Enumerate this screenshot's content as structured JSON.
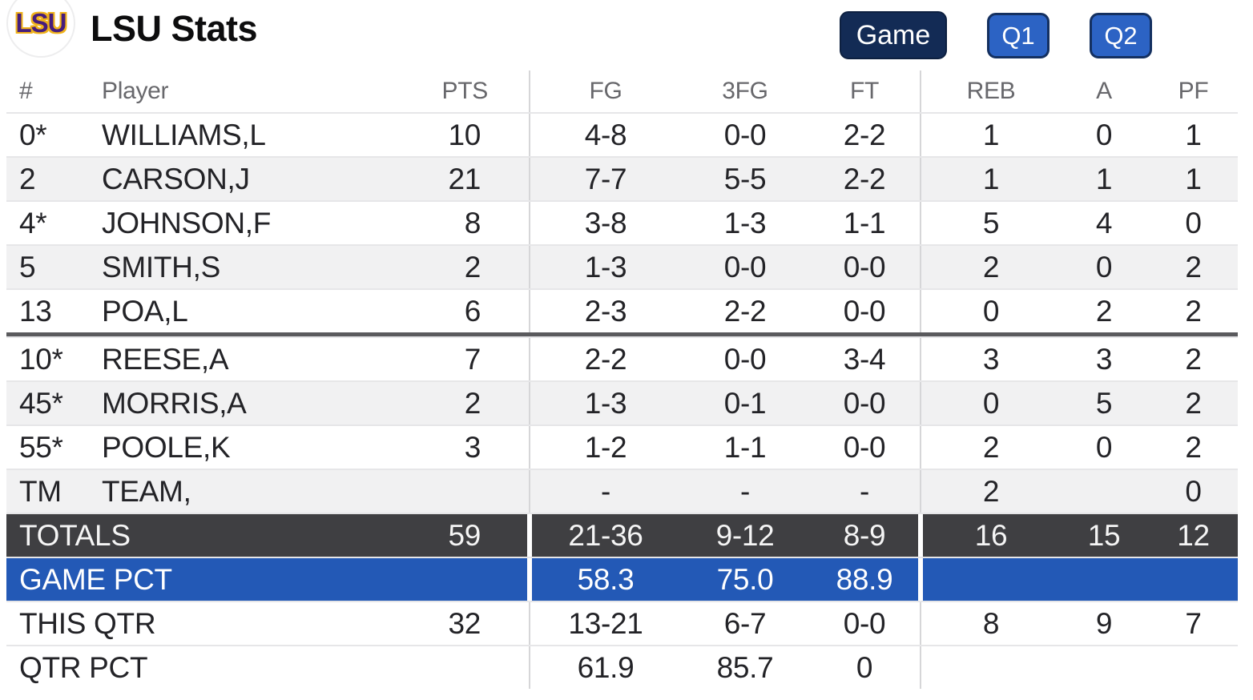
{
  "header": {
    "logo_text": "LSU",
    "title": "LSU Stats",
    "buttons": [
      {
        "label": "Game",
        "active": true
      },
      {
        "label": "Q1",
        "active": false
      },
      {
        "label": "Q2",
        "active": false
      }
    ]
  },
  "table": {
    "columns": [
      "#",
      "Player",
      "PTS",
      "FG",
      "3FG",
      "FT",
      "REB",
      "A",
      "PF"
    ],
    "divider_after_index": 4,
    "players": [
      {
        "num": "0*",
        "name": "WILLIAMS,L",
        "pts": "10",
        "fg": "4-8",
        "tfg": "0-0",
        "ft": "2-2",
        "reb": "1",
        "a": "0",
        "pf": "1"
      },
      {
        "num": "2",
        "name": "CARSON,J",
        "pts": "21",
        "fg": "7-7",
        "tfg": "5-5",
        "ft": "2-2",
        "reb": "1",
        "a": "1",
        "pf": "1"
      },
      {
        "num": "4*",
        "name": "JOHNSON,F",
        "pts": "8",
        "fg": "3-8",
        "tfg": "1-3",
        "ft": "1-1",
        "reb": "5",
        "a": "4",
        "pf": "0"
      },
      {
        "num": "5",
        "name": "SMITH,S",
        "pts": "2",
        "fg": "1-3",
        "tfg": "0-0",
        "ft": "0-0",
        "reb": "2",
        "a": "0",
        "pf": "2"
      },
      {
        "num": "13",
        "name": "POA,L",
        "pts": "6",
        "fg": "2-3",
        "tfg": "2-2",
        "ft": "0-0",
        "reb": "0",
        "a": "2",
        "pf": "2"
      },
      {
        "num": "10*",
        "name": "REESE,A",
        "pts": "7",
        "fg": "2-2",
        "tfg": "0-0",
        "ft": "3-4",
        "reb": "3",
        "a": "3",
        "pf": "2"
      },
      {
        "num": "45*",
        "name": "MORRIS,A",
        "pts": "2",
        "fg": "1-3",
        "tfg": "0-1",
        "ft": "0-0",
        "reb": "0",
        "a": "5",
        "pf": "2"
      },
      {
        "num": "55*",
        "name": "POOLE,K",
        "pts": "3",
        "fg": "1-2",
        "tfg": "1-1",
        "ft": "0-0",
        "reb": "2",
        "a": "0",
        "pf": "2"
      },
      {
        "num": "TM",
        "name": "TEAM,",
        "pts": "",
        "fg": "-",
        "tfg": "-",
        "ft": "-",
        "reb": "2",
        "a": "",
        "pf": "0"
      }
    ],
    "summary": [
      {
        "label": "TOTALS",
        "pts": "59",
        "fg": "21-36",
        "tfg": "9-12",
        "ft": "8-9",
        "reb": "16",
        "a": "15",
        "pf": "12",
        "style": "totals"
      },
      {
        "label": "GAME PCT",
        "pts": "",
        "fg": "58.3",
        "tfg": "75.0",
        "ft": "88.9",
        "reb": "",
        "a": "",
        "pf": "",
        "style": "gamepct"
      },
      {
        "label": "THIS QTR",
        "pts": "32",
        "fg": "13-21",
        "tfg": "6-7",
        "ft": "0-0",
        "reb": "8",
        "a": "9",
        "pf": "7",
        "style": "plain"
      },
      {
        "label": "QTR PCT",
        "pts": "",
        "fg": "61.9",
        "tfg": "85.7",
        "ft": "0",
        "reb": "",
        "a": "",
        "pf": "",
        "style": "plain"
      }
    ]
  },
  "colors": {
    "accent_navy": "#132b55",
    "accent_blue": "#2c63c4",
    "totals_row_bg": "#3f3f42",
    "game_pct_row_bg": "#2359b6",
    "zebra_gray": "#f1f1f2",
    "lsu_purple": "#461d7c",
    "lsu_gold": "#f0b21a"
  }
}
